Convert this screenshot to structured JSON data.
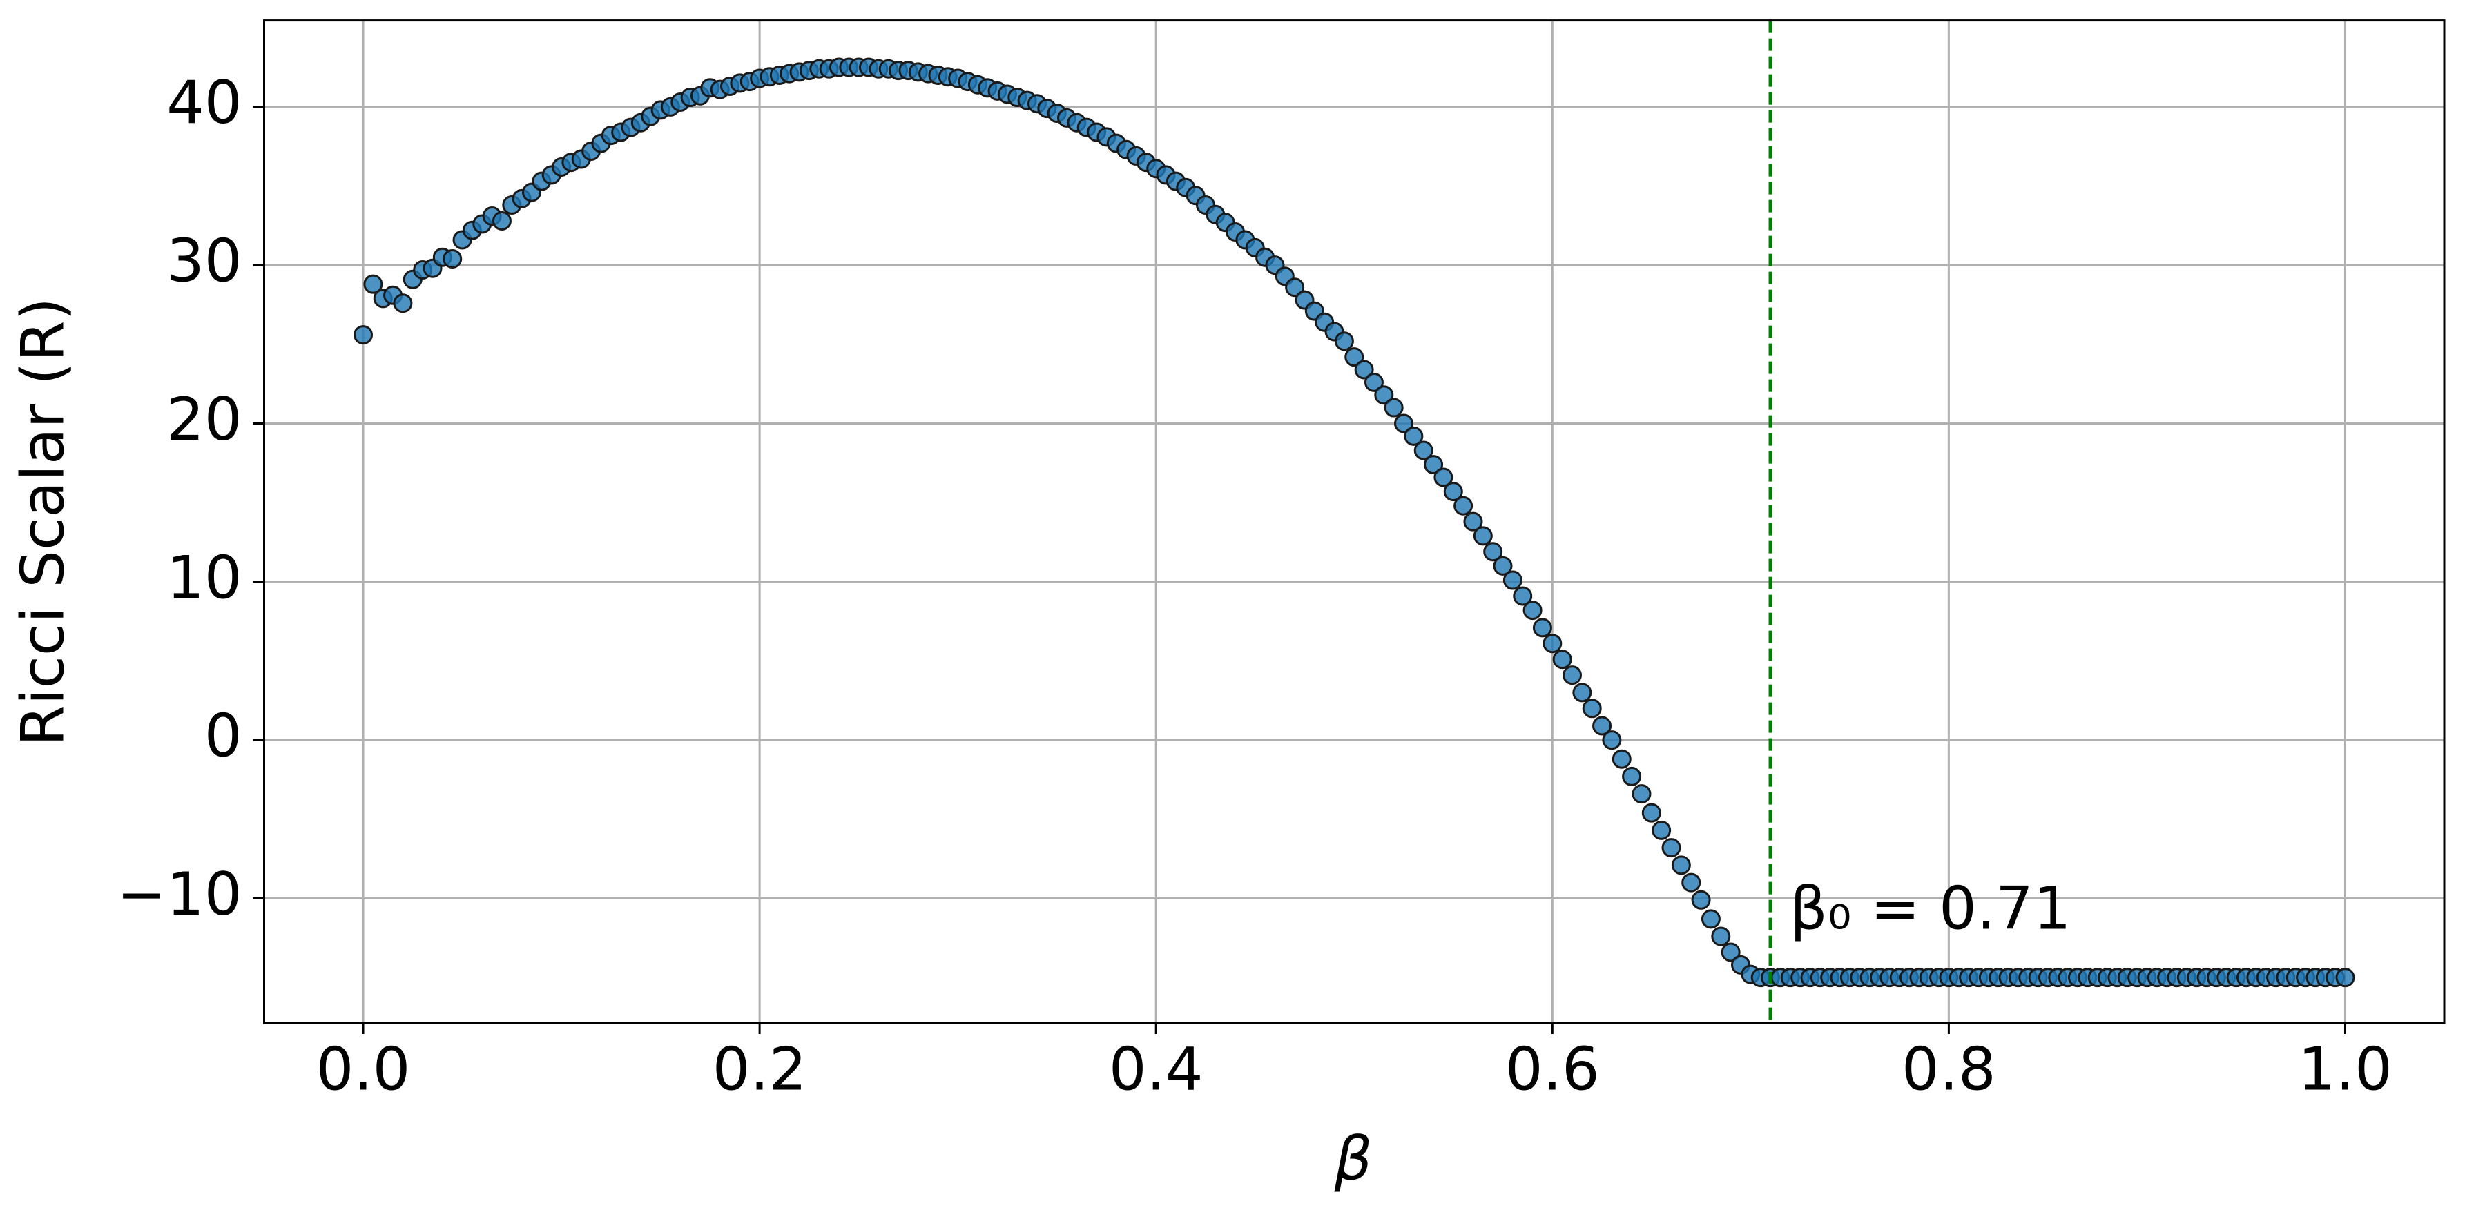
{
  "chart_data": {
    "type": "scatter",
    "xlabel": "β",
    "ylabel": "Ricci Scalar (R)",
    "x": [
      0.0,
      0.005,
      0.01,
      0.015,
      0.02,
      0.025,
      0.03,
      0.035,
      0.04,
      0.045,
      0.05,
      0.055,
      0.06,
      0.065,
      0.07,
      0.075,
      0.08,
      0.085,
      0.09,
      0.095,
      0.1,
      0.105,
      0.11,
      0.115,
      0.12,
      0.125,
      0.13,
      0.135,
      0.14,
      0.145,
      0.15,
      0.155,
      0.16,
      0.165,
      0.17,
      0.175,
      0.18,
      0.185,
      0.19,
      0.195,
      0.2,
      0.205,
      0.21,
      0.215,
      0.22,
      0.225,
      0.23,
      0.235,
      0.24,
      0.245,
      0.25,
      0.255,
      0.26,
      0.265,
      0.27,
      0.275,
      0.28,
      0.285,
      0.29,
      0.295,
      0.3,
      0.305,
      0.31,
      0.315,
      0.32,
      0.325,
      0.33,
      0.335,
      0.34,
      0.345,
      0.35,
      0.355,
      0.36,
      0.365,
      0.37,
      0.375,
      0.38,
      0.385,
      0.39,
      0.395,
      0.4,
      0.405,
      0.41,
      0.415,
      0.42,
      0.425,
      0.43,
      0.435,
      0.44,
      0.445,
      0.45,
      0.455,
      0.46,
      0.465,
      0.47,
      0.475,
      0.48,
      0.485,
      0.49,
      0.495,
      0.5,
      0.505,
      0.51,
      0.515,
      0.52,
      0.525,
      0.53,
      0.535,
      0.54,
      0.545,
      0.55,
      0.555,
      0.56,
      0.565,
      0.57,
      0.575,
      0.58,
      0.585,
      0.59,
      0.595,
      0.6,
      0.605,
      0.61,
      0.615,
      0.62,
      0.625,
      0.63,
      0.635,
      0.64,
      0.645,
      0.65,
      0.655,
      0.66,
      0.665,
      0.67,
      0.675,
      0.68,
      0.685,
      0.69,
      0.695,
      0.7,
      0.705,
      0.71,
      0.715,
      0.72,
      0.725,
      0.73,
      0.735,
      0.74,
      0.745,
      0.75,
      0.755,
      0.76,
      0.765,
      0.77,
      0.775,
      0.78,
      0.785,
      0.79,
      0.795,
      0.8,
      0.805,
      0.81,
      0.815,
      0.82,
      0.825,
      0.83,
      0.835,
      0.84,
      0.845,
      0.85,
      0.855,
      0.86,
      0.865,
      0.87,
      0.875,
      0.88,
      0.885,
      0.89,
      0.895,
      0.9,
      0.905,
      0.91,
      0.915,
      0.92,
      0.925,
      0.93,
      0.935,
      0.94,
      0.945,
      0.95,
      0.955,
      0.96,
      0.965,
      0.97,
      0.975,
      0.98,
      0.985,
      0.99,
      0.995,
      1.0
    ],
    "series": [
      {
        "color": "#1f77b4",
        "values": [
          25.6,
          28.8,
          27.9,
          28.1,
          27.6,
          29.1,
          29.7,
          29.8,
          30.5,
          30.4,
          31.6,
          32.2,
          32.6,
          33.1,
          32.8,
          33.8,
          34.2,
          34.6,
          35.3,
          35.7,
          36.2,
          36.5,
          36.7,
          37.2,
          37.7,
          38.2,
          38.4,
          38.7,
          39.0,
          39.4,
          39.8,
          40.0,
          40.3,
          40.6,
          40.7,
          41.2,
          41.1,
          41.3,
          41.5,
          41.6,
          41.8,
          41.9,
          42.0,
          42.1,
          42.2,
          42.3,
          42.4,
          42.4,
          42.5,
          42.5,
          42.5,
          42.5,
          42.4,
          42.4,
          42.3,
          42.3,
          42.2,
          42.1,
          42.0,
          41.9,
          41.8,
          41.6,
          41.4,
          41.2,
          41.0,
          40.8,
          40.6,
          40.4,
          40.2,
          39.9,
          39.6,
          39.3,
          39.0,
          38.7,
          38.4,
          38.1,
          37.7,
          37.3,
          36.9,
          36.5,
          36.1,
          35.7,
          35.3,
          34.9,
          34.4,
          33.8,
          33.2,
          32.7,
          32.1,
          31.6,
          31.1,
          30.5,
          30.0,
          29.3,
          28.6,
          27.8,
          27.1,
          26.4,
          25.8,
          25.2,
          24.2,
          23.4,
          22.6,
          21.8,
          21.0,
          20.0,
          19.2,
          18.3,
          17.4,
          16.6,
          15.7,
          14.8,
          13.8,
          12.9,
          11.9,
          11.0,
          10.1,
          9.1,
          8.2,
          7.1,
          6.1,
          5.1,
          4.1,
          3.0,
          2.0,
          0.9,
          0.0,
          -1.2,
          -2.3,
          -3.4,
          -4.6,
          -5.7,
          -6.8,
          -7.9,
          -9.0,
          -10.1,
          -11.3,
          -12.4,
          -13.4,
          -14.2,
          -14.8,
          -15.0,
          -15.0,
          -15.0,
          -15.0,
          -15.0,
          -15.0,
          -15.0,
          -15.0,
          -15.0,
          -15.0,
          -15.0,
          -15.0,
          -15.0,
          -15.0,
          -15.0,
          -15.0,
          -15.0,
          -15.0,
          -15.0,
          -15.0,
          -15.0,
          -15.0,
          -15.0,
          -15.0,
          -15.0,
          -15.0,
          -15.0,
          -15.0,
          -15.0,
          -15.0,
          -15.0,
          -15.0,
          -15.0,
          -15.0,
          -15.0,
          -15.0,
          -15.0,
          -15.0,
          -15.0,
          -15.0,
          -15.0,
          -15.0,
          -15.0,
          -15.0,
          -15.0,
          -15.0,
          -15.0,
          -15.0,
          -15.0,
          -15.0,
          -15.0,
          -15.0,
          -15.0,
          -15.0,
          -15.0,
          -15.0,
          -15.0,
          -15.0,
          -15.0,
          -15.0
        ]
      }
    ],
    "xlim": [
      -0.05,
      1.05
    ],
    "ylim": [
      -17.87,
      45.46
    ],
    "xticks": [
      {
        "value": 0,
        "label": "0.0"
      },
      0.2,
      0.4,
      0.6,
      0.8,
      {
        "value": 1,
        "label": "1.0"
      }
    ],
    "yticks": [
      {
        "value": -10,
        "label": "−10"
      },
      0,
      10,
      20,
      30,
      40
    ],
    "grid": true,
    "vline": {
      "x": 0.71,
      "color": "#008000",
      "label": "β₀ = 0.71"
    }
  }
}
